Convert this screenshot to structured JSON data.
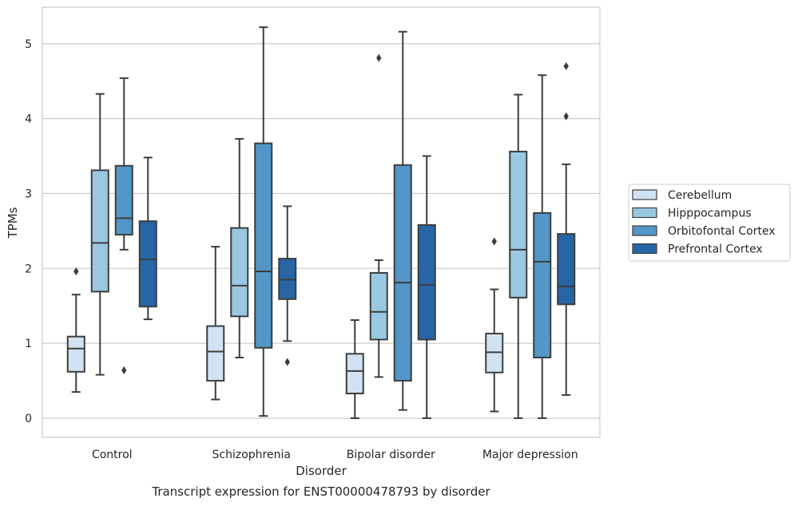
{
  "chart_data": {
    "type": "box",
    "title": "",
    "caption": "Transcript expression for ENST00000478793 by disorder",
    "xlabel": "Disorder",
    "ylabel": "TPMs",
    "ylim": [
      -0.25,
      5.5
    ],
    "yticks": [
      0,
      1,
      2,
      3,
      4,
      5
    ],
    "grid": "horizontal",
    "legend_position": "right",
    "categories": [
      "Control",
      "Schizophrenia",
      "Bipolar disorder",
      "Major depression"
    ],
    "series": [
      {
        "name": "Cerebellum",
        "color": "#d1e2f2",
        "boxes": [
          {
            "whisker_low": 0.35,
            "q1": 0.62,
            "median": 0.93,
            "q3": 1.09,
            "whisker_high": 1.65,
            "outliers": [
              1.96
            ]
          },
          {
            "whisker_low": 0.25,
            "q1": 0.5,
            "median": 0.89,
            "q3": 1.23,
            "whisker_high": 2.29,
            "outliers": []
          },
          {
            "whisker_low": 0.0,
            "q1": 0.33,
            "median": 0.63,
            "q3": 0.86,
            "whisker_high": 1.31,
            "outliers": []
          },
          {
            "whisker_low": 0.09,
            "q1": 0.61,
            "median": 0.88,
            "q3": 1.13,
            "whisker_high": 1.72,
            "outliers": [
              2.36
            ]
          }
        ]
      },
      {
        "name": "Hipppocampus",
        "color": "#9ac8e0",
        "boxes": [
          {
            "whisker_low": 0.58,
            "q1": 1.69,
            "median": 2.34,
            "q3": 3.31,
            "whisker_high": 4.33,
            "outliers": []
          },
          {
            "whisker_low": 0.81,
            "q1": 1.36,
            "median": 1.77,
            "q3": 2.54,
            "whisker_high": 3.73,
            "outliers": []
          },
          {
            "whisker_low": 0.55,
            "q1": 1.05,
            "median": 1.42,
            "q3": 1.94,
            "whisker_high": 2.11,
            "outliers": [
              4.81
            ]
          },
          {
            "whisker_low": 0.0,
            "q1": 1.61,
            "median": 2.25,
            "q3": 3.56,
            "whisker_high": 4.32,
            "outliers": []
          }
        ]
      },
      {
        "name": "Orbitofontal Cortex",
        "color": "#5297c7",
        "boxes": [
          {
            "whisker_low": 2.25,
            "q1": 2.45,
            "median": 2.67,
            "q3": 3.37,
            "whisker_high": 4.54,
            "outliers": [
              0.64
            ]
          },
          {
            "whisker_low": 0.03,
            "q1": 0.94,
            "median": 1.96,
            "q3": 3.67,
            "whisker_high": 5.22,
            "outliers": []
          },
          {
            "whisker_low": 0.11,
            "q1": 0.5,
            "median": 1.81,
            "q3": 3.38,
            "whisker_high": 5.16,
            "outliers": []
          },
          {
            "whisker_low": 0.0,
            "q1": 0.81,
            "median": 2.09,
            "q3": 2.74,
            "whisker_high": 4.58,
            "outliers": []
          }
        ]
      },
      {
        "name": "Prefrontal Cortex",
        "color": "#2666a6",
        "boxes": [
          {
            "whisker_low": 1.32,
            "q1": 1.49,
            "median": 2.12,
            "q3": 2.63,
            "whisker_high": 3.48,
            "outliers": []
          },
          {
            "whisker_low": 1.03,
            "q1": 1.59,
            "median": 1.85,
            "q3": 2.13,
            "whisker_high": 2.83,
            "outliers": [
              0.75
            ]
          },
          {
            "whisker_low": 0.0,
            "q1": 1.05,
            "median": 1.78,
            "q3": 2.58,
            "whisker_high": 3.5,
            "outliers": []
          },
          {
            "whisker_low": 0.31,
            "q1": 1.52,
            "median": 1.76,
            "q3": 2.46,
            "whisker_high": 3.39,
            "outliers": [
              4.03,
              4.7
            ]
          }
        ]
      }
    ]
  }
}
